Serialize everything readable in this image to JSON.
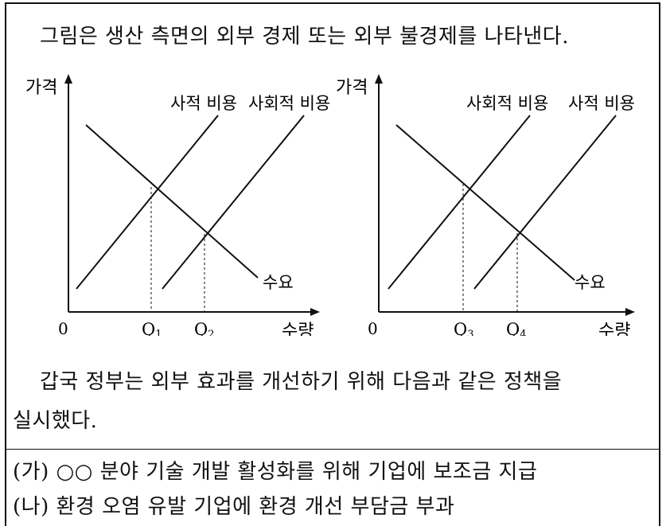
{
  "intro": "그림은 생산 측면의 외부 경제 또는 외부 불경제를 나타낸다.",
  "charts": [
    {
      "yaxis": "가격",
      "xaxis": "수량",
      "origin": "0",
      "curve_labels": [
        "사적 비용",
        "사회적 비용",
        "수요"
      ],
      "ticks": [
        "Q1",
        "Q2"
      ]
    },
    {
      "yaxis": "가격",
      "xaxis": "수량",
      "origin": "0",
      "curve_labels": [
        "사회적 비용",
        "사적 비용",
        "수요"
      ],
      "ticks": [
        "Q3",
        "Q4"
      ]
    }
  ],
  "policy_line1": "갑국 정부는 외부 효과를 개선하기 위해 다음과 같은 정책을",
  "policy_line2": "실시했다.",
  "items": [
    "(가) ○○ 분야 기술 개발 활성화를 위해 기업에 보조금 지급",
    "(나) 환경 오염 유발 기업에 환경 개선 부담금 부과"
  ]
}
